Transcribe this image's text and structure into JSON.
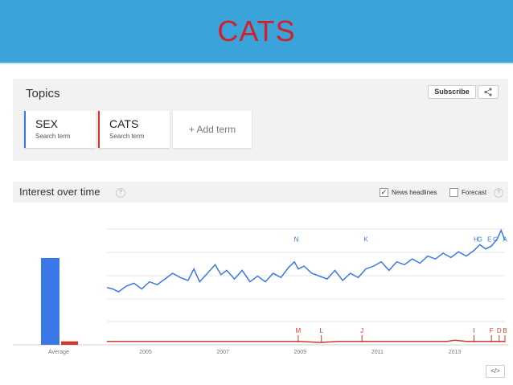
{
  "slide": {
    "title": "CATS"
  },
  "topics": {
    "title": "Topics",
    "subscribe_label": "Subscribe",
    "share_icon": "share-icon",
    "terms": [
      {
        "name": "SEX",
        "sub": "Search term",
        "color": "#3b78e7"
      },
      {
        "name": "CATS",
        "sub": "Search term",
        "color": "#d03a2c"
      }
    ],
    "add_term_label": "+ Add term"
  },
  "interest": {
    "title": "Interest over time",
    "help_glyph": "?",
    "news_label": "News headlines",
    "news_checked": true,
    "check_glyph": "✓",
    "forecast_label": "Forecast",
    "forecast_checked": false,
    "embed_label": "</>"
  },
  "chart_data": {
    "type": "line",
    "x_tick_labels": [
      "2005",
      "2007",
      "2009",
      "2011",
      "2013"
    ],
    "average": {
      "label": "Average",
      "values": [
        {
          "term": "SEX",
          "value": 75,
          "color": "#3b78e7"
        },
        {
          "term": "CATS",
          "value": 3,
          "color": "#d03a2c"
        }
      ]
    },
    "x_range": [
      2004.0,
      2014.3
    ],
    "y_range": [
      0,
      100
    ],
    "series": [
      {
        "name": "SEX",
        "color": "#3b78e7",
        "points": [
          [
            2004.0,
            58
          ],
          [
            2004.15,
            57
          ],
          [
            2004.3,
            55
          ],
          [
            2004.5,
            59
          ],
          [
            2004.7,
            61
          ],
          [
            2004.9,
            57
          ],
          [
            2005.1,
            62
          ],
          [
            2005.3,
            60
          ],
          [
            2005.5,
            64
          ],
          [
            2005.7,
            68
          ],
          [
            2005.9,
            65
          ],
          [
            2006.1,
            63
          ],
          [
            2006.25,
            71
          ],
          [
            2006.4,
            62
          ],
          [
            2006.6,
            68
          ],
          [
            2006.8,
            74
          ],
          [
            2006.95,
            67
          ],
          [
            2007.1,
            70
          ],
          [
            2007.3,
            64
          ],
          [
            2007.5,
            70
          ],
          [
            2007.7,
            62
          ],
          [
            2007.9,
            66
          ],
          [
            2008.1,
            62
          ],
          [
            2008.3,
            68
          ],
          [
            2008.5,
            65
          ],
          [
            2008.7,
            72
          ],
          [
            2008.85,
            76
          ],
          [
            2008.95,
            71
          ],
          [
            2009.1,
            73
          ],
          [
            2009.3,
            68
          ],
          [
            2009.5,
            66
          ],
          [
            2009.7,
            64
          ],
          [
            2009.9,
            70
          ],
          [
            2010.1,
            63
          ],
          [
            2010.3,
            68
          ],
          [
            2010.5,
            65
          ],
          [
            2010.7,
            71
          ],
          [
            2010.9,
            73
          ],
          [
            2011.1,
            76
          ],
          [
            2011.3,
            70
          ],
          [
            2011.5,
            76
          ],
          [
            2011.7,
            74
          ],
          [
            2011.9,
            78
          ],
          [
            2012.1,
            75
          ],
          [
            2012.3,
            80
          ],
          [
            2012.5,
            78
          ],
          [
            2012.7,
            82
          ],
          [
            2012.9,
            79
          ],
          [
            2013.1,
            83
          ],
          [
            2013.3,
            80
          ],
          [
            2013.5,
            84
          ],
          [
            2013.65,
            88
          ],
          [
            2013.8,
            85
          ],
          [
            2013.95,
            87
          ],
          [
            2014.1,
            92
          ],
          [
            2014.2,
            98
          ],
          [
            2014.3,
            91
          ]
        ]
      },
      {
        "name": "CATS",
        "color": "#d03a2c",
        "points": [
          [
            2004.0,
            3
          ],
          [
            2005.0,
            3
          ],
          [
            2006.0,
            3
          ],
          [
            2007.0,
            3
          ],
          [
            2008.0,
            3
          ],
          [
            2009.0,
            3
          ],
          [
            2009.5,
            2
          ],
          [
            2010.0,
            3
          ],
          [
            2011.0,
            3
          ],
          [
            2012.0,
            3
          ],
          [
            2012.8,
            3
          ],
          [
            2013.0,
            4
          ],
          [
            2013.3,
            3
          ],
          [
            2013.6,
            3
          ],
          [
            2014.0,
            3
          ],
          [
            2014.3,
            3
          ]
        ]
      }
    ],
    "news_markers": [
      {
        "series": "SEX",
        "letter": "N",
        "x": 2008.9
      },
      {
        "series": "SEX",
        "letter": "K",
        "x": 2010.7
      },
      {
        "series": "SEX",
        "letter": "H",
        "x": 2013.55
      },
      {
        "series": "SEX",
        "letter": "G",
        "x": 2013.65
      },
      {
        "series": "SEX",
        "letter": "E",
        "x": 2013.9
      },
      {
        "series": "SEX",
        "letter": "C",
        "x": 2014.05
      },
      {
        "series": "SEX",
        "letter": "A",
        "x": 2014.3
      },
      {
        "series": "CATS",
        "letter": "M",
        "x": 2008.95
      },
      {
        "series": "CATS",
        "letter": "L",
        "x": 2009.55
      },
      {
        "series": "CATS",
        "letter": "J",
        "x": 2010.6
      },
      {
        "series": "CATS",
        "letter": "I",
        "x": 2013.5
      },
      {
        "series": "CATS",
        "letter": "F",
        "x": 2013.95
      },
      {
        "series": "CATS",
        "letter": "D",
        "x": 2014.15
      },
      {
        "series": "CATS",
        "letter": "B",
        "x": 2014.3
      }
    ]
  }
}
